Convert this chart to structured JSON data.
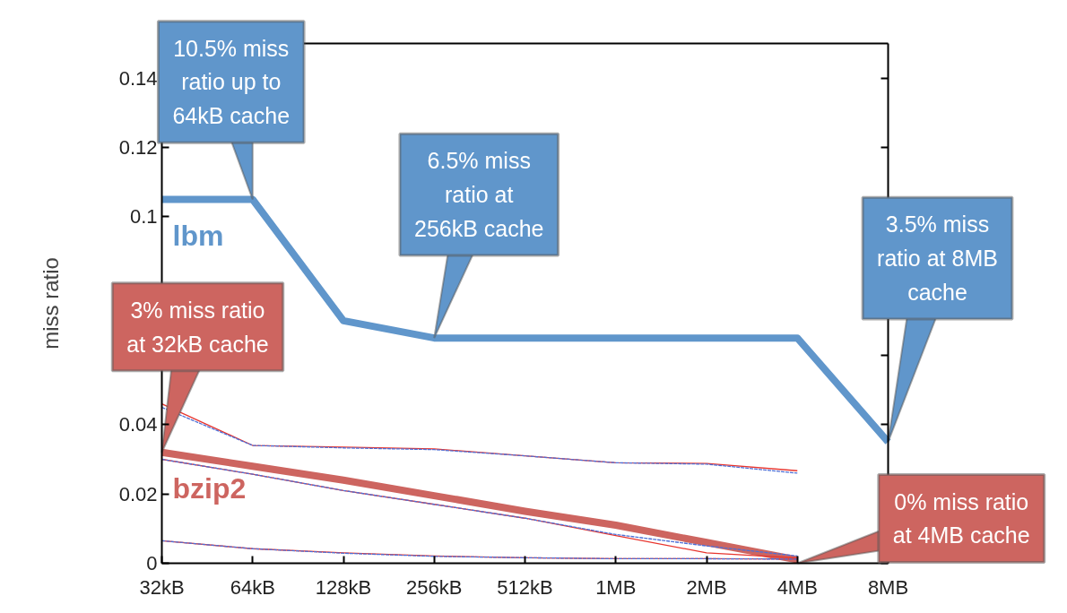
{
  "chart_data": {
    "type": "line",
    "ylabel": "miss ratio",
    "categories": [
      "32kB",
      "64kB",
      "128kB",
      "256kB",
      "512kB",
      "1MB",
      "2MB",
      "4MB",
      "8MB"
    ],
    "ylim": [
      0,
      0.15
    ],
    "yticks": [
      0,
      0.02,
      0.04,
      {
        "value": 0.06,
        "label": null
      },
      0.1,
      0.12,
      0.14
    ],
    "grid": false,
    "legend": false,
    "marker": "none",
    "series": [
      {
        "name": "lbm",
        "color": "#6096cb",
        "line_style": "solid",
        "values": [
          0.105,
          0.105,
          0.07,
          0.065,
          0.065,
          0.065,
          0.065,
          0.065,
          0.035
        ]
      },
      {
        "name": "bzip2",
        "color": "#cd6560",
        "line_style": "solid",
        "values": [
          0.032,
          0.028,
          0.024,
          0.0195,
          0.015,
          0.011,
          0.006,
          0.001,
          null
        ]
      },
      {
        "color": "#e8352e",
        "line_style": "solid",
        "values": [
          0.046,
          0.034,
          0.0335,
          0.033,
          0.031,
          0.029,
          0.0288,
          0.0267,
          null
        ]
      },
      {
        "color": "#4e6fd6",
        "line_style": "dashed",
        "values": [
          0.045,
          0.034,
          0.0333,
          0.0328,
          0.031,
          0.029,
          0.0286,
          0.026,
          null
        ]
      },
      {
        "color": "#e8352e",
        "line_style": "solid",
        "values": [
          0.03,
          0.0257,
          0.021,
          0.017,
          0.013,
          0.008,
          0.003,
          0.0015,
          null
        ]
      },
      {
        "color": "#4e6fd6",
        "line_style": "dashed",
        "values": [
          0.03,
          0.0257,
          0.021,
          0.017,
          0.013,
          0.0083,
          0.005,
          0.0021,
          null
        ]
      },
      {
        "color": "#e8352e",
        "line_style": "solid",
        "values": [
          0.0065,
          0.0042,
          0.003,
          0.0021,
          0.0016,
          0.0013,
          0.0013,
          0.0012,
          null
        ]
      },
      {
        "color": "#4e6fd6",
        "line_style": "dashed",
        "values": [
          0.0065,
          0.0042,
          0.0029,
          0.002,
          0.0016,
          0.0013,
          0.0013,
          0.0012,
          null
        ]
      }
    ],
    "annotations": [
      {
        "text": "10.5% miss ratio up to 64kB cache",
        "x": "64kB",
        "y": 0.105
      },
      {
        "text": "6.5% miss ratio at 256kB cache",
        "x": "256kB",
        "y": 0.065
      },
      {
        "text": "3.5% miss ratio at 8MB cache",
        "x": "8MB",
        "y": 0.035
      },
      {
        "text": "3% miss ratio at 32kB cache",
        "x": "32kB",
        "y": 0.032
      },
      {
        "text": "0% miss ratio at 4MB cache",
        "x": "4MB",
        "y": 0
      }
    ]
  }
}
